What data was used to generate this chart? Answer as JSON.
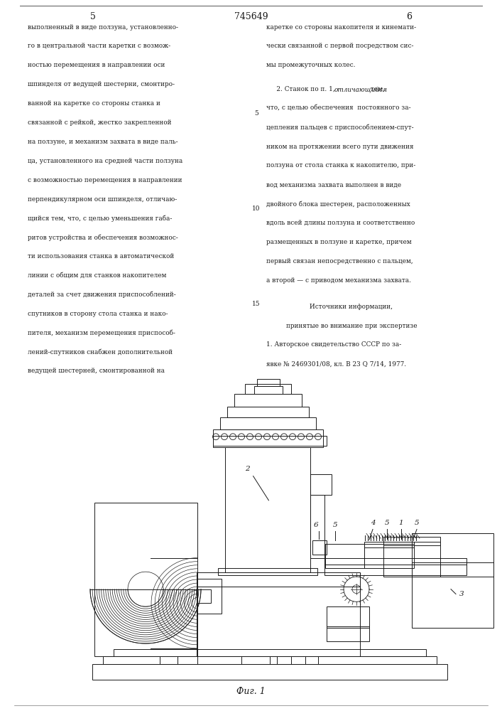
{
  "page_number_left": "5",
  "page_number_center": "745649",
  "page_number_right": "6",
  "bg_color": "#ffffff",
  "text_color": "#1a1a1a",
  "left_column_text": [
    "выполненный в виде ползуна, установленно-",
    "го в центральной части каретки с возмож-",
    "ностью перемещения в направлении оси",
    "шпинделя от ведущей шестерни, смонтиро-",
    "ванной на каретке со стороны станка и",
    "связанной с рейкой, жестко закрепленной",
    "на ползуне, и механизм захвата в виде паль-",
    "ца, установленного на средней части ползуна",
    "с возможностью перемещения в направлении",
    "перпендикулярном оси шпинделя, отличаю-",
    "щийся тем, что, с целью уменьшения габа-",
    "ритов устройства и обеспечения возможнос-",
    "ти использования станка в автоматической",
    "линии с общим для станков накопителем",
    "деталей за счет движения приспособлений-",
    "спутников в сторону стола станка и нако-",
    "пителя, механизм перемещения приспособ-",
    "лений-спутников снабжен дополнительной",
    "ведущей шестерней, смонтированной на"
  ],
  "right_col_top": [
    "каретке со стороны накопителя и кинемати-",
    "чески связанной с первой посредством сис-",
    "мы промежуточных колес."
  ],
  "right_col_claim2_pre": "     2. Станок по п. 1, ",
  "right_col_claim2_italic": "отличающийся",
  "right_col_claim2_post": " тем,",
  "right_col_claim2_rest": [
    "что, с целью обеспечения  постоянного за-",
    "цепления пальцев с приспособлением-спут-",
    "ником на протяжении всего пути движения",
    "ползуна от стола станка к накопителю, при-",
    "вод механизма захвата выполнен в виде",
    "двойного блока шестерен, расположенных",
    "вдоль всей длины ползуна и соответственно",
    "размещенных в ползуне и каретке, причем",
    "первый связан непосредственно с пальцем,",
    "а второй — с приводом механизма захвата."
  ],
  "sources_header": "Источники информации,",
  "sources_sub": "принятые во внимание при экспертизе",
  "sources_lines": [
    "1. Авторское свидетельство СССР по за-",
    "явке № 2469301/08, кл. В 23 Q 7/14, 1977."
  ],
  "figure_caption": "Фиг. 1",
  "lc": "#1a1a1a",
  "lw": 0.7
}
